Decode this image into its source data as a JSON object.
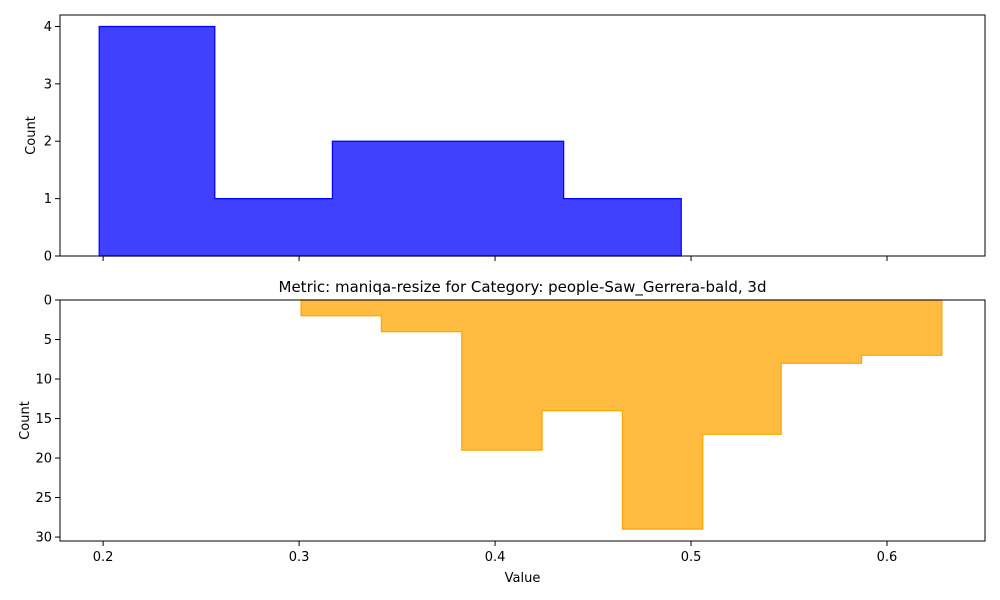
{
  "chart_data": [
    {
      "type": "histogram-step",
      "orientation": "up",
      "title": "",
      "xlabel": "",
      "ylabel": "Count",
      "xlim": [
        0.178,
        0.65
      ],
      "ylim": [
        0,
        4.2
      ],
      "yticks": [
        0,
        1,
        2,
        3,
        4
      ],
      "xticks": [
        0.2,
        0.3,
        0.4,
        0.5,
        0.6
      ],
      "show_xtick_labels": false,
      "color": "#0000ff",
      "fill_opacity": 0.75,
      "bin_edges": [
        0.198,
        0.257,
        0.317,
        0.376,
        0.435,
        0.495
      ],
      "counts": [
        4,
        1,
        2,
        2,
        1
      ]
    },
    {
      "type": "histogram-step",
      "orientation": "down",
      "title": "Metric: maniqa-resize for Category: people-Saw_Gerrera-bald, 3d",
      "xlabel": "Value",
      "ylabel": "Count",
      "xlim": [
        0.178,
        0.65
      ],
      "ylim": [
        0,
        30.5
      ],
      "yticks": [
        0,
        5,
        10,
        15,
        20,
        25,
        30
      ],
      "xticks": [
        0.2,
        0.3,
        0.4,
        0.5,
        0.6
      ],
      "xtick_labels": [
        "0.2",
        "0.3",
        "0.4",
        "0.5",
        "0.6"
      ],
      "show_xtick_labels": true,
      "color": "#ffa500",
      "fill_opacity": 0.75,
      "bin_edges": [
        0.301,
        0.342,
        0.383,
        0.424,
        0.465,
        0.506,
        0.546,
        0.587,
        0.628
      ],
      "counts": [
        2,
        4,
        19,
        14,
        29,
        17,
        8,
        7
      ]
    }
  ]
}
